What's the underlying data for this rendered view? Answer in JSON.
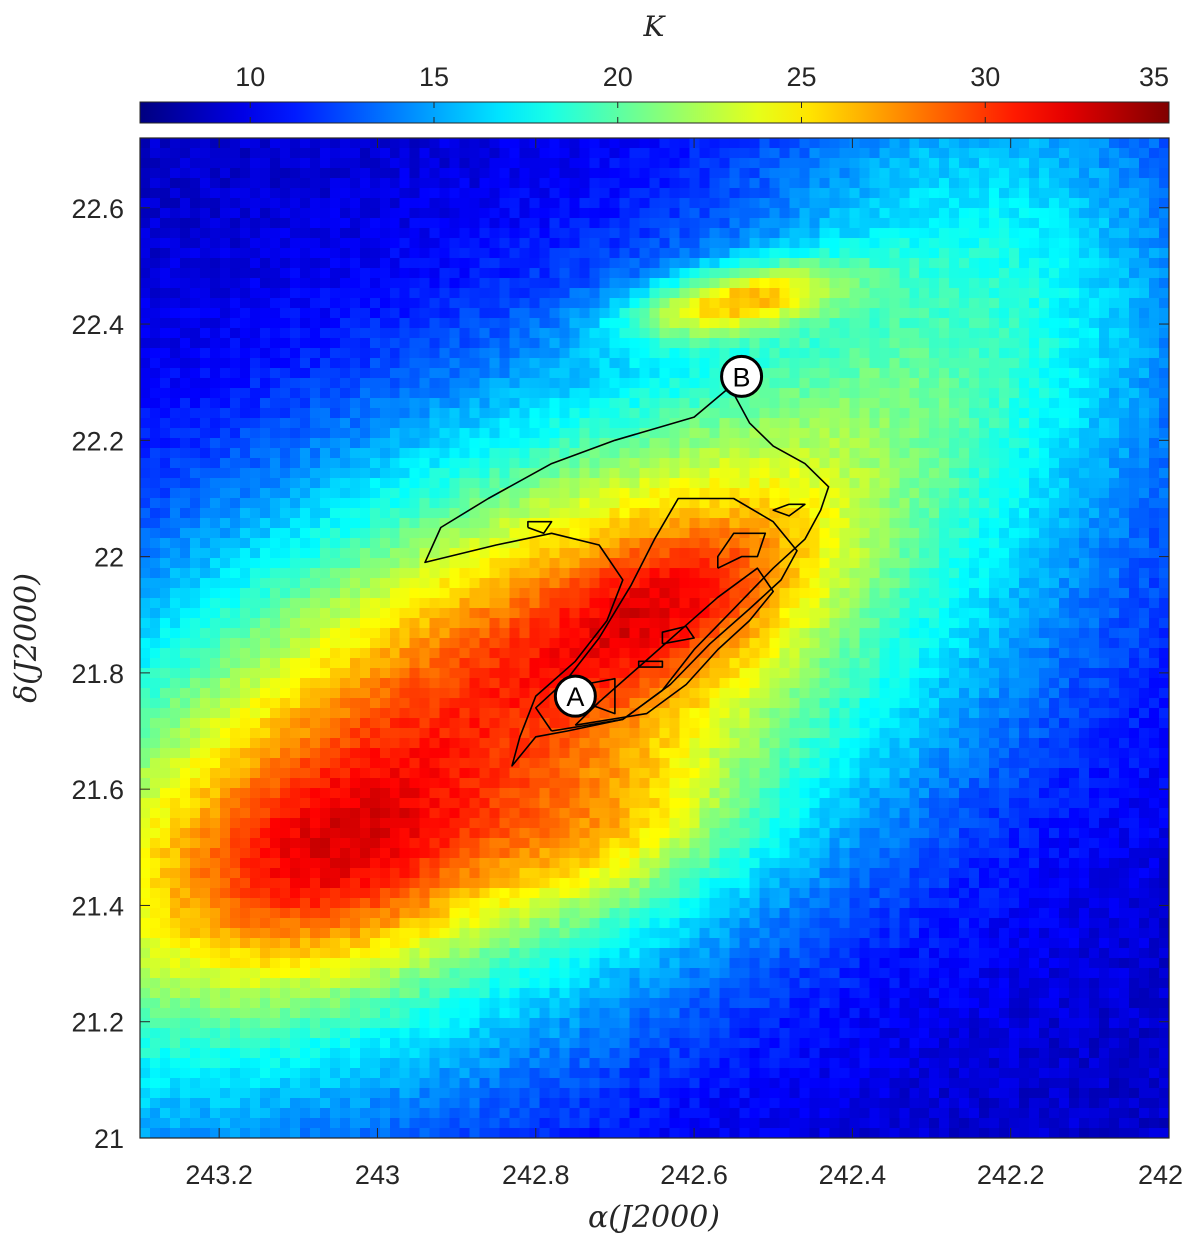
{
  "chart_data": {
    "type": "heatmap",
    "title": "",
    "xlabel": "α(J2000)",
    "ylabel": "δ(J2000)",
    "xlim": [
      243.3,
      242.0
    ],
    "ylim": [
      21.0,
      22.72
    ],
    "x_reversed": true,
    "xticks": [
      243.2,
      243.0,
      242.8,
      242.6,
      242.4,
      242.2,
      242.0
    ],
    "xtick_labels": [
      "243.2",
      "243",
      "242.8",
      "242.6",
      "242.4",
      "242.2",
      "242"
    ],
    "yticks": [
      21.0,
      21.2,
      21.4,
      21.6,
      21.8,
      22.0,
      22.2,
      22.4,
      22.6
    ],
    "ytick_labels": [
      "21",
      "21.2",
      "21.4",
      "21.6",
      "21.8",
      "22",
      "22.2",
      "22.4",
      "22.6"
    ],
    "colorbar": {
      "label": "K",
      "range": [
        7,
        35
      ],
      "ticks": [
        10,
        15,
        20,
        25,
        30,
        35
      ],
      "tick_labels": [
        "10",
        "15",
        "20",
        "25",
        "30",
        "35"
      ],
      "colormap": "jet",
      "location": "top"
    },
    "grid": false,
    "background_level": 9,
    "emission_components": [
      {
        "ra": 242.88,
        "dec": 21.7,
        "peak": 17,
        "sigma_major": 0.6,
        "sigma_minor": 0.32,
        "pa_deg": 42
      },
      {
        "ra": 242.8,
        "dec": 21.85,
        "peak": 4,
        "sigma_major": 0.6,
        "sigma_minor": 0.15,
        "pa_deg": 42
      },
      {
        "ra": 243.06,
        "dec": 21.45,
        "peak": 6,
        "sigma_major": 0.16,
        "sigma_minor": 0.12,
        "pa_deg": 30
      },
      {
        "ra": 242.7,
        "dec": 21.52,
        "peak": 4,
        "sigma_major": 0.12,
        "sigma_minor": 0.09,
        "pa_deg": 30
      },
      {
        "ra": 242.62,
        "dec": 21.92,
        "peak": 5,
        "sigma_major": 0.14,
        "sigma_minor": 0.08,
        "pa_deg": 40
      },
      {
        "ra": 242.55,
        "dec": 22.44,
        "peak": 11,
        "sigma_major": 0.1,
        "sigma_minor": 0.04,
        "pa_deg": 15
      },
      {
        "ra": 242.25,
        "dec": 22.62,
        "peak": 5,
        "sigma_major": 0.3,
        "sigma_minor": 0.2,
        "pa_deg": 90
      }
    ],
    "contours": [
      [
        [
          242.76,
          21.7
        ],
        [
          242.69,
          21.72
        ],
        [
          242.64,
          21.77
        ],
        [
          242.6,
          21.84
        ],
        [
          242.55,
          21.91
        ],
        [
          242.5,
          21.98
        ],
        [
          242.46,
          22.03
        ],
        [
          242.44,
          22.08
        ],
        [
          242.43,
          22.12
        ],
        [
          242.46,
          22.16
        ],
        [
          242.5,
          22.19
        ],
        [
          242.53,
          22.23
        ],
        [
          242.55,
          22.28
        ],
        [
          242.53,
          22.32
        ],
        [
          242.6,
          22.24
        ],
        [
          242.7,
          22.2
        ],
        [
          242.78,
          22.16
        ],
        [
          242.86,
          22.1
        ],
        [
          242.92,
          22.05
        ],
        [
          242.94,
          21.99
        ],
        [
          242.85,
          22.02
        ],
        [
          242.78,
          22.04
        ],
        [
          242.72,
          22.02
        ],
        [
          242.69,
          21.96
        ],
        [
          242.71,
          21.89
        ],
        [
          242.75,
          21.82
        ],
        [
          242.8,
          21.76
        ],
        [
          242.82,
          21.69
        ],
        [
          242.83,
          21.64
        ],
        [
          242.8,
          21.69
        ],
        [
          242.76,
          21.7
        ]
      ],
      [
        [
          242.78,
          21.7
        ],
        [
          242.69,
          21.72
        ],
        [
          242.63,
          21.78
        ],
        [
          242.58,
          21.85
        ],
        [
          242.53,
          21.91
        ],
        [
          242.49,
          21.96
        ],
        [
          242.47,
          22.01
        ],
        [
          242.5,
          22.06
        ],
        [
          242.55,
          22.1
        ],
        [
          242.62,
          22.1
        ],
        [
          242.65,
          22.03
        ],
        [
          242.68,
          21.95
        ],
        [
          242.72,
          21.86
        ],
        [
          242.76,
          21.79
        ],
        [
          242.8,
          21.74
        ],
        [
          242.78,
          21.7
        ]
      ],
      [
        [
          242.75,
          21.71
        ],
        [
          242.66,
          21.73
        ],
        [
          242.61,
          21.78
        ],
        [
          242.57,
          21.84
        ],
        [
          242.53,
          21.89
        ],
        [
          242.5,
          21.94
        ],
        [
          242.52,
          21.98
        ],
        [
          242.57,
          21.93
        ],
        [
          242.62,
          21.87
        ],
        [
          242.67,
          21.81
        ],
        [
          242.72,
          21.75
        ],
        [
          242.75,
          21.71
        ]
      ],
      [
        [
          242.74,
          21.75
        ],
        [
          242.7,
          21.73
        ],
        [
          242.7,
          21.79
        ],
        [
          242.74,
          21.78
        ],
        [
          242.74,
          21.75
        ]
      ],
      [
        [
          242.67,
          21.81
        ],
        [
          242.64,
          21.81
        ],
        [
          242.64,
          21.82
        ],
        [
          242.67,
          21.82
        ],
        [
          242.67,
          21.81
        ]
      ],
      [
        [
          242.64,
          21.85
        ],
        [
          242.6,
          21.86
        ],
        [
          242.61,
          21.88
        ],
        [
          242.64,
          21.87
        ],
        [
          242.64,
          21.85
        ]
      ],
      [
        [
          242.57,
          21.98
        ],
        [
          242.54,
          22.0
        ],
        [
          242.52,
          22.0
        ],
        [
          242.51,
          22.04
        ],
        [
          242.55,
          22.04
        ],
        [
          242.57,
          22.0
        ],
        [
          242.57,
          21.98
        ]
      ],
      [
        [
          242.81,
          22.05
        ],
        [
          242.79,
          22.04
        ],
        [
          242.78,
          22.06
        ],
        [
          242.81,
          22.06
        ],
        [
          242.81,
          22.05
        ]
      ],
      [
        [
          242.48,
          22.09
        ],
        [
          242.46,
          22.09
        ],
        [
          242.48,
          22.07
        ],
        [
          242.5,
          22.08
        ],
        [
          242.48,
          22.09
        ]
      ]
    ],
    "markers": [
      {
        "label": "A",
        "ra": 242.75,
        "dec": 21.76
      },
      {
        "label": "B",
        "ra": 242.54,
        "dec": 22.31
      }
    ]
  }
}
